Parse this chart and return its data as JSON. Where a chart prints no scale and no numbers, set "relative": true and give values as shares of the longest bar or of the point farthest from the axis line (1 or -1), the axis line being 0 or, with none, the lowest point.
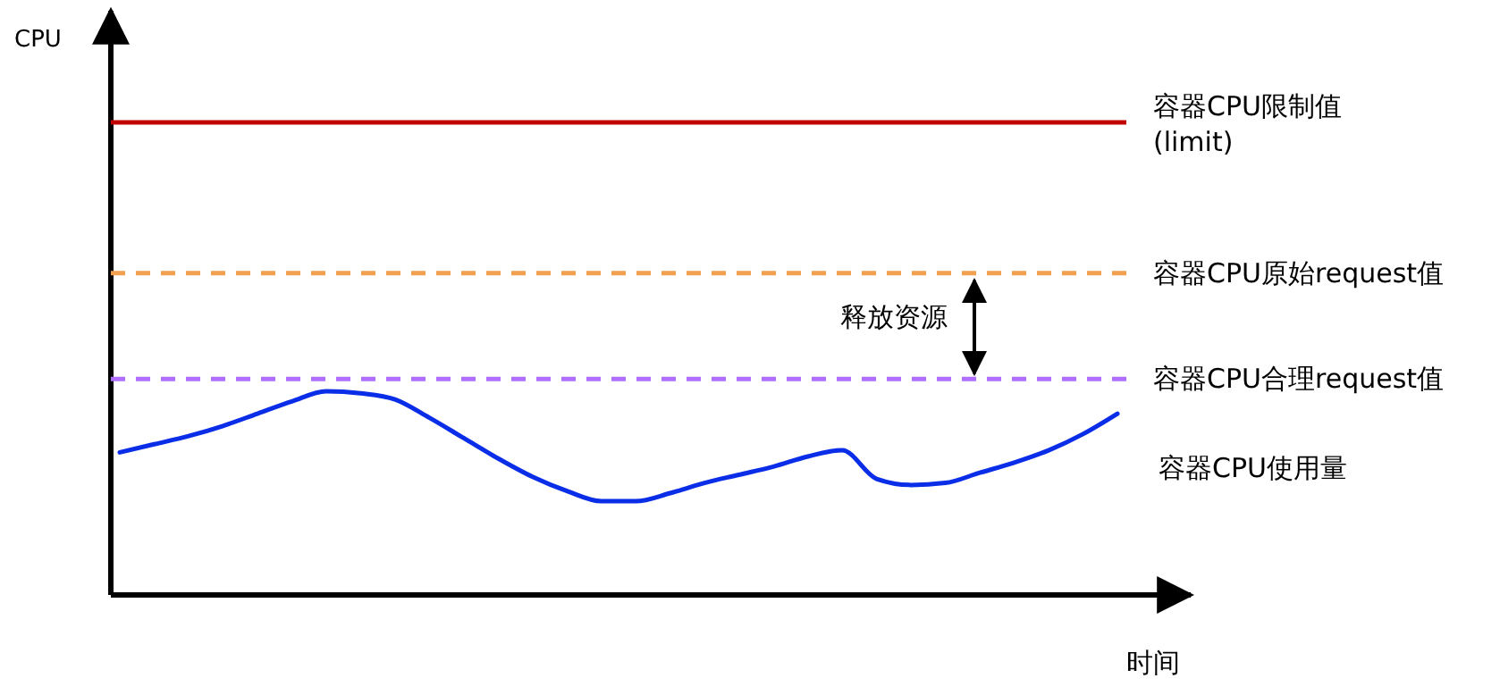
{
  "chart_data": {
    "type": "line",
    "relative": true,
    "xlabel": "时间",
    "marker": "none",
    "line_style": "solid",
    "categories": [
      null,
      null,
      null,
      null,
      null,
      null,
      null,
      null,
      null,
      null,
      null,
      null,
      null,
      null,
      null,
      null,
      null,
      null,
      null,
      null,
      null,
      null,
      null,
      null,
      null,
      null,
      null,
      null,
      null,
      null
    ],
    "series": [
      {
        "name": "容器CPU使用量",
        "color": "#0a2ee8",
        "values": [
          0.7,
          0.74,
          0.78,
          0.83,
          0.89,
          0.95,
          1,
          0.99,
          0.96,
          0.87,
          0.77,
          0.67,
          0.58,
          0.51,
          0.46,
          0.46,
          0.5,
          0.55,
          0.59,
          0.63,
          0.68,
          0.71,
          0.57,
          0.54,
          0.55,
          0.6,
          0.65,
          0.71,
          0.79,
          0.89
        ]
      }
    ],
    "ref_lines": [
      {
        "axis": "y",
        "value": 2.32,
        "label": "容器CPU限制值\n(limit)",
        "color": "#c00000",
        "line_style": "solid"
      },
      {
        "axis": "y",
        "value": 1.58,
        "label": "容器CPU原始request值",
        "color": "#f0a050",
        "line_style": "dashed"
      },
      {
        "axis": "y",
        "value": 1.06,
        "label": "容器CPU合理request值",
        "color": "#b070ff",
        "line_style": "dashed"
      }
    ],
    "annotations": [
      "CPU",
      "释放资源"
    ]
  }
}
